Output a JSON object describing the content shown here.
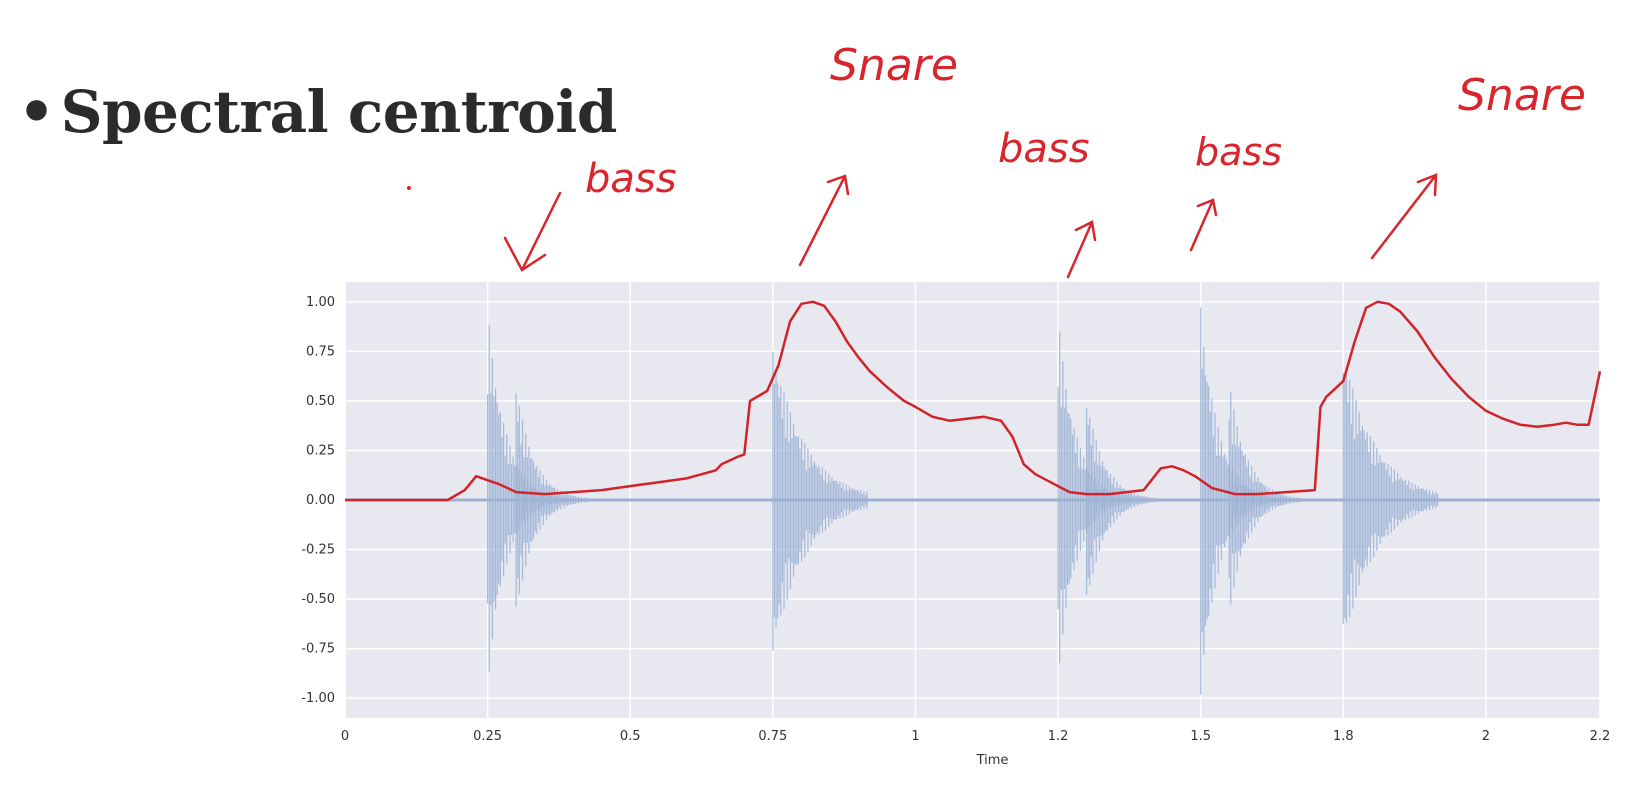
{
  "slide": {
    "bullet": "•",
    "title": "Spectral centroid"
  },
  "annotations": [
    {
      "label": "bass"
    },
    {
      "label": "Snare"
    },
    {
      "label": "bass"
    },
    {
      "label": "bass"
    },
    {
      "label": "Snare"
    }
  ],
  "colors": {
    "plot_background": "#e8e8f0",
    "gridline": "#ffffff",
    "waveform": "#9cb2d5",
    "centroid": "#d1232a",
    "annotation": "#d8262c"
  },
  "chart_data": {
    "type": "line",
    "xlabel": "Time",
    "ylabel": "",
    "xlim": [
      0,
      2.2
    ],
    "ylim": [
      -1.1,
      1.1
    ],
    "x_ticks": [
      0,
      0.25,
      0.5,
      0.75,
      1,
      1.25,
      1.5,
      1.75,
      2,
      2.2
    ],
    "x_tick_labels": [
      "0",
      "0.25",
      "0.5",
      "0.75",
      "1",
      "1.2",
      "1.5",
      "1.8",
      "2",
      "2.2"
    ],
    "y_ticks": [
      1.0,
      0.75,
      0.5,
      0.25,
      0.0,
      -0.25,
      -0.5,
      -0.75,
      -1.0
    ],
    "y_tick_labels": [
      "1.00",
      "0.75",
      "0.50",
      "0.25",
      "0.00",
      "-0.25",
      "-0.50",
      "-0.75",
      "-1.00"
    ],
    "grid": true,
    "series": [
      {
        "kind": "waveform",
        "onsets": [
          {
            "t": 0.25,
            "peak": 0.97,
            "trough": -0.95,
            "decay": 0.05
          },
          {
            "t": 0.3,
            "peak": 0.58,
            "trough": -0.58,
            "decay": 0.05
          },
          {
            "t": 0.75,
            "peak": 0.78,
            "trough": -0.79,
            "decay": 0.09
          },
          {
            "t": 1.25,
            "peak": 0.93,
            "trough": -0.9,
            "decay": 0.05
          },
          {
            "t": 1.3,
            "peak": 0.52,
            "trough": -0.54,
            "decay": 0.05
          },
          {
            "t": 1.5,
            "peak": 0.99,
            "trough": -1.0,
            "decay": 0.05
          },
          {
            "t": 1.55,
            "peak": 0.6,
            "trough": -0.58,
            "decay": 0.05
          },
          {
            "t": 1.75,
            "peak": 0.76,
            "trough": -0.74,
            "decay": 0.09
          }
        ]
      },
      {
        "kind": "spectral_centroid",
        "x": [
          0,
          0.18,
          0.21,
          0.23,
          0.25,
          0.27,
          0.3,
          0.35,
          0.4,
          0.45,
          0.5,
          0.55,
          0.6,
          0.65,
          0.66,
          0.69,
          0.7,
          0.71,
          0.74,
          0.76,
          0.78,
          0.8,
          0.82,
          0.84,
          0.86,
          0.88,
          0.9,
          0.92,
          0.95,
          0.98,
          1.0,
          1.03,
          1.06,
          1.09,
          1.12,
          1.15,
          1.17,
          1.19,
          1.21,
          1.23,
          1.27,
          1.3,
          1.34,
          1.4,
          1.43,
          1.45,
          1.47,
          1.49,
          1.52,
          1.56,
          1.6,
          1.65,
          1.7,
          1.71,
          1.72,
          1.75,
          1.77,
          1.79,
          1.81,
          1.83,
          1.85,
          1.88,
          1.91,
          1.94,
          1.97,
          2.0,
          2.03,
          2.06,
          2.09,
          2.12,
          2.14,
          2.16,
          2.18,
          2.2
        ],
        "y": [
          0.0,
          0.0,
          0.05,
          0.12,
          0.1,
          0.08,
          0.04,
          0.03,
          0.04,
          0.05,
          0.07,
          0.09,
          0.11,
          0.15,
          0.18,
          0.22,
          0.23,
          0.5,
          0.55,
          0.68,
          0.9,
          0.99,
          1.0,
          0.98,
          0.9,
          0.8,
          0.72,
          0.65,
          0.57,
          0.5,
          0.47,
          0.42,
          0.4,
          0.41,
          0.42,
          0.4,
          0.32,
          0.18,
          0.13,
          0.1,
          0.04,
          0.03,
          0.03,
          0.05,
          0.16,
          0.17,
          0.15,
          0.12,
          0.06,
          0.03,
          0.03,
          0.04,
          0.05,
          0.47,
          0.52,
          0.6,
          0.8,
          0.97,
          1.0,
          0.99,
          0.95,
          0.85,
          0.72,
          0.61,
          0.52,
          0.45,
          0.41,
          0.38,
          0.37,
          0.38,
          0.39,
          0.38,
          0.38,
          0.65
        ]
      }
    ]
  }
}
